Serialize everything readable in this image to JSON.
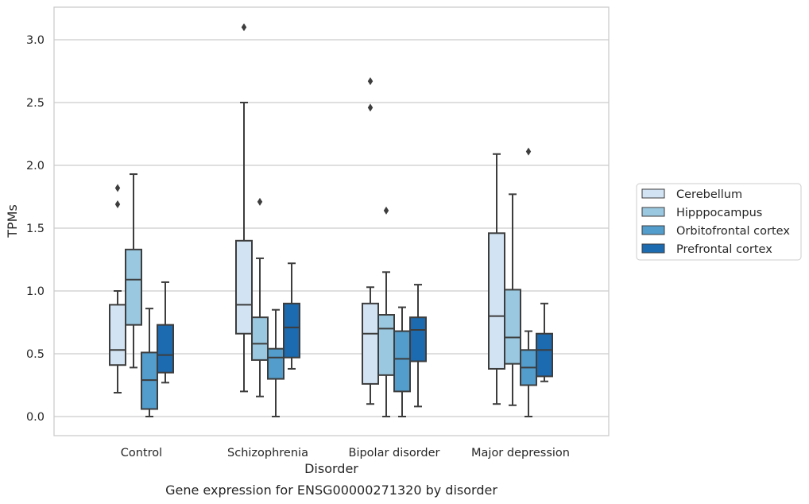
{
  "chart_data": {
    "type": "box",
    "ylabel": "TPMs",
    "xlabel": "Disorder",
    "caption": "Gene expression for ENSG00000271320 by disorder",
    "ylim": [
      -0.15,
      3.25
    ],
    "yticks": [
      0.0,
      0.5,
      1.0,
      1.5,
      2.0,
      2.5,
      3.0
    ],
    "ytick_labels": [
      "0.0",
      "0.5",
      "1.0",
      "1.5",
      "2.0",
      "2.5",
      "3.0"
    ],
    "grid": "horizontal",
    "legend_position": "right",
    "categories": [
      "Control",
      "Schizophrenia",
      "Bipolar disorder",
      "Major depression"
    ],
    "series": [
      {
        "name": "Cerebellum",
        "color": "#d2e3f3",
        "boxes": [
          {
            "whislo": 0.19,
            "q1": 0.41,
            "med": 0.53,
            "q3": 0.89,
            "whishi": 1.0,
            "fliers": [
              1.69,
              1.82
            ]
          },
          {
            "whislo": 0.2,
            "q1": 0.66,
            "med": 0.89,
            "q3": 1.4,
            "whishi": 2.5,
            "fliers": [
              3.1
            ]
          },
          {
            "whislo": 0.1,
            "q1": 0.26,
            "med": 0.66,
            "q3": 0.9,
            "whishi": 1.03,
            "fliers": [
              2.46,
              2.67
            ]
          },
          {
            "whislo": 0.1,
            "q1": 0.38,
            "med": 0.8,
            "q3": 1.46,
            "whishi": 2.09,
            "fliers": []
          }
        ]
      },
      {
        "name": "Hipppocampus",
        "color": "#9ac8e0",
        "boxes": [
          {
            "whislo": 0.39,
            "q1": 0.73,
            "med": 1.09,
            "q3": 1.33,
            "whishi": 1.93,
            "fliers": []
          },
          {
            "whislo": 0.16,
            "q1": 0.45,
            "med": 0.58,
            "q3": 0.79,
            "whishi": 1.26,
            "fliers": [
              1.71
            ]
          },
          {
            "whislo": 0.0,
            "q1": 0.33,
            "med": 0.7,
            "q3": 0.81,
            "whishi": 1.15,
            "fliers": [
              1.64
            ]
          },
          {
            "whislo": 0.09,
            "q1": 0.42,
            "med": 0.63,
            "q3": 1.01,
            "whishi": 1.77,
            "fliers": []
          }
        ]
      },
      {
        "name": "Orbitofrontal cortex",
        "color": "#529dcc",
        "boxes": [
          {
            "whislo": 0.0,
            "q1": 0.06,
            "med": 0.29,
            "q3": 0.51,
            "whishi": 0.86,
            "fliers": []
          },
          {
            "whislo": 0.0,
            "q1": 0.3,
            "med": 0.47,
            "q3": 0.54,
            "whishi": 0.85,
            "fliers": []
          },
          {
            "whislo": 0.0,
            "q1": 0.2,
            "med": 0.46,
            "q3": 0.68,
            "whishi": 0.87,
            "fliers": []
          },
          {
            "whislo": 0.0,
            "q1": 0.25,
            "med": 0.39,
            "q3": 0.53,
            "whishi": 0.68,
            "fliers": [
              2.11
            ]
          }
        ]
      },
      {
        "name": "Prefrontal cortex",
        "color": "#1c6aaf",
        "boxes": [
          {
            "whislo": 0.27,
            "q1": 0.35,
            "med": 0.49,
            "q3": 0.73,
            "whishi": 1.07,
            "fliers": []
          },
          {
            "whislo": 0.38,
            "q1": 0.47,
            "med": 0.71,
            "q3": 0.9,
            "whishi": 1.22,
            "fliers": []
          },
          {
            "whislo": 0.08,
            "q1": 0.44,
            "med": 0.69,
            "q3": 0.79,
            "whishi": 1.05,
            "fliers": []
          },
          {
            "whislo": 0.28,
            "q1": 0.32,
            "med": 0.53,
            "q3": 0.66,
            "whishi": 0.9,
            "fliers": []
          }
        ]
      }
    ]
  }
}
